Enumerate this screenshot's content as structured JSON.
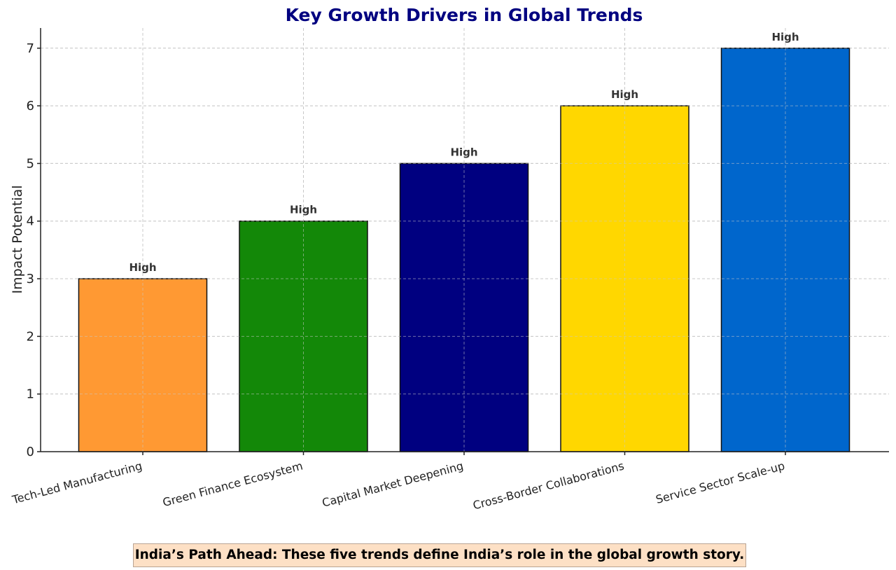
{
  "chart_data": {
    "type": "bar",
    "title": "Key Growth Drivers in Global Trends",
    "xlabel": "",
    "ylabel": "Impact Potential",
    "categories": [
      "Tech-Led Manufacturing",
      "Green Finance Ecosystem",
      "Capital Market Deepening",
      "Cross-Border Collaborations",
      "Service Sector Scale-up"
    ],
    "values": [
      3,
      4,
      5,
      6,
      7
    ],
    "data_labels": [
      "High",
      "High",
      "High",
      "High",
      "High"
    ],
    "yticks": [
      0,
      1,
      2,
      3,
      4,
      5,
      6,
      7
    ],
    "ylim": [
      0,
      7.35
    ],
    "grid": true,
    "colors": [
      "#ff9933",
      "#138808",
      "#000080",
      "#ffd700",
      "#0066cc"
    ],
    "title_color": "#000080"
  },
  "annotation": {
    "text": "India’s Path Ahead: These five trends define India’s role in the global growth story."
  }
}
